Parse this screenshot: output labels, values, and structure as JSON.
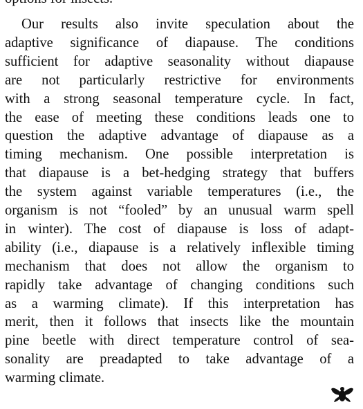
{
  "fragment": "options for insects.",
  "paragraph": {
    "lines": [
      "Our results also invite speculation about the",
      "adaptive significance of diapause. The conditions",
      "sufficient for adaptive seasonality without diapause",
      "are not particularly restrictive for environments",
      "with a strong seasonal temperature cycle. In fact,",
      "the ease of meeting these conditions leads one to",
      "question the adaptive advantage of diapause as a",
      "timing mechanism. One possible interpretation is",
      "that diapause is a bet-hedging strategy that buffers",
      "the system against variable temperatures (i.e., the",
      "organism is not “fooled” by an unusual warm spell",
      "in winter). The cost of diapause is loss of adapt-",
      "ability (i.e., diapause is a relatively inflexible timing",
      "mechanism that does not allow the organism to",
      "rapidly take advantage of changing conditions such",
      "as a warming climate). If this interpretation has",
      "merit, then it follows that insects like the mountain",
      "pine beetle with direct temperature control of sea-",
      "sonality are preadapted to take advantage of a",
      "warming climate."
    ]
  }
}
